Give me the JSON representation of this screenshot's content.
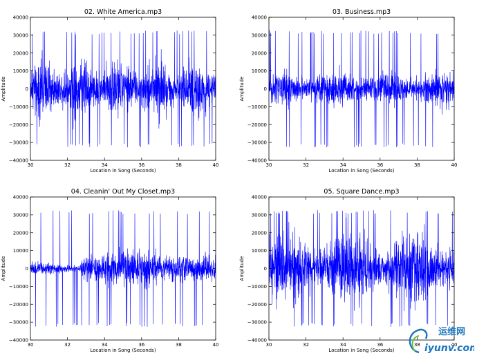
{
  "chart_data": [
    {
      "type": "line",
      "title": "02. White America.mp3",
      "xlabel": "Location in Song (Seconds)",
      "ylabel": "Amplitude",
      "xlim": [
        30,
        40
      ],
      "ylim": [
        -40000,
        40000
      ],
      "xticks": [
        30,
        32,
        34,
        36,
        38,
        40
      ],
      "yticks": [
        -40000,
        -30000,
        -20000,
        -10000,
        0,
        10000,
        20000,
        30000,
        40000
      ],
      "series": [
        {
          "name": "waveform",
          "color": "#0000ff",
          "peak_amplitude": 32767,
          "typical_amplitude": 15000
        }
      ]
    },
    {
      "type": "line",
      "title": "03. Business.mp3",
      "xlabel": "Location in Song (Seconds)",
      "ylabel": "Amplitude",
      "xlim": [
        30,
        40
      ],
      "ylim": [
        -40000,
        40000
      ],
      "xticks": [
        30,
        32,
        34,
        36,
        38,
        40
      ],
      "yticks": [
        -40000,
        -30000,
        -20000,
        -10000,
        0,
        10000,
        20000,
        30000,
        40000
      ],
      "series": [
        {
          "name": "waveform",
          "color": "#0000ff",
          "peak_amplitude": 32767,
          "typical_amplitude": 10000
        }
      ]
    },
    {
      "type": "line",
      "title": "04. Cleanin' Out My Closet.mp3",
      "xlabel": "Location in Song (Seconds)",
      "ylabel": "Amplitude",
      "xlim": [
        30,
        40
      ],
      "ylim": [
        -40000,
        40000
      ],
      "xticks": [
        30,
        32,
        34,
        36,
        38,
        40
      ],
      "yticks": [
        -40000,
        -30000,
        -20000,
        -10000,
        0,
        10000,
        20000,
        30000,
        40000
      ],
      "series": [
        {
          "name": "waveform",
          "color": "#0000ff",
          "peak_amplitude": 32767,
          "typical_amplitude": 6000
        }
      ]
    },
    {
      "type": "line",
      "title": "05. Square Dance.mp3",
      "xlabel": "Location in Song (Seconds)",
      "ylabel": "Amplitude",
      "xlim": [
        30,
        40
      ],
      "ylim": [
        -40000,
        40000
      ],
      "xticks": [
        30,
        32,
        34,
        36,
        38,
        40
      ],
      "yticks": [
        -40000,
        -30000,
        -20000,
        -10000,
        0,
        10000,
        20000,
        30000,
        40000
      ],
      "series": [
        {
          "name": "waveform",
          "color": "#0000ff",
          "peak_amplitude": 32767,
          "typical_amplitude": 18000
        }
      ]
    }
  ],
  "watermark": {
    "cn": "运维网",
    "en": "iyunv.com"
  }
}
